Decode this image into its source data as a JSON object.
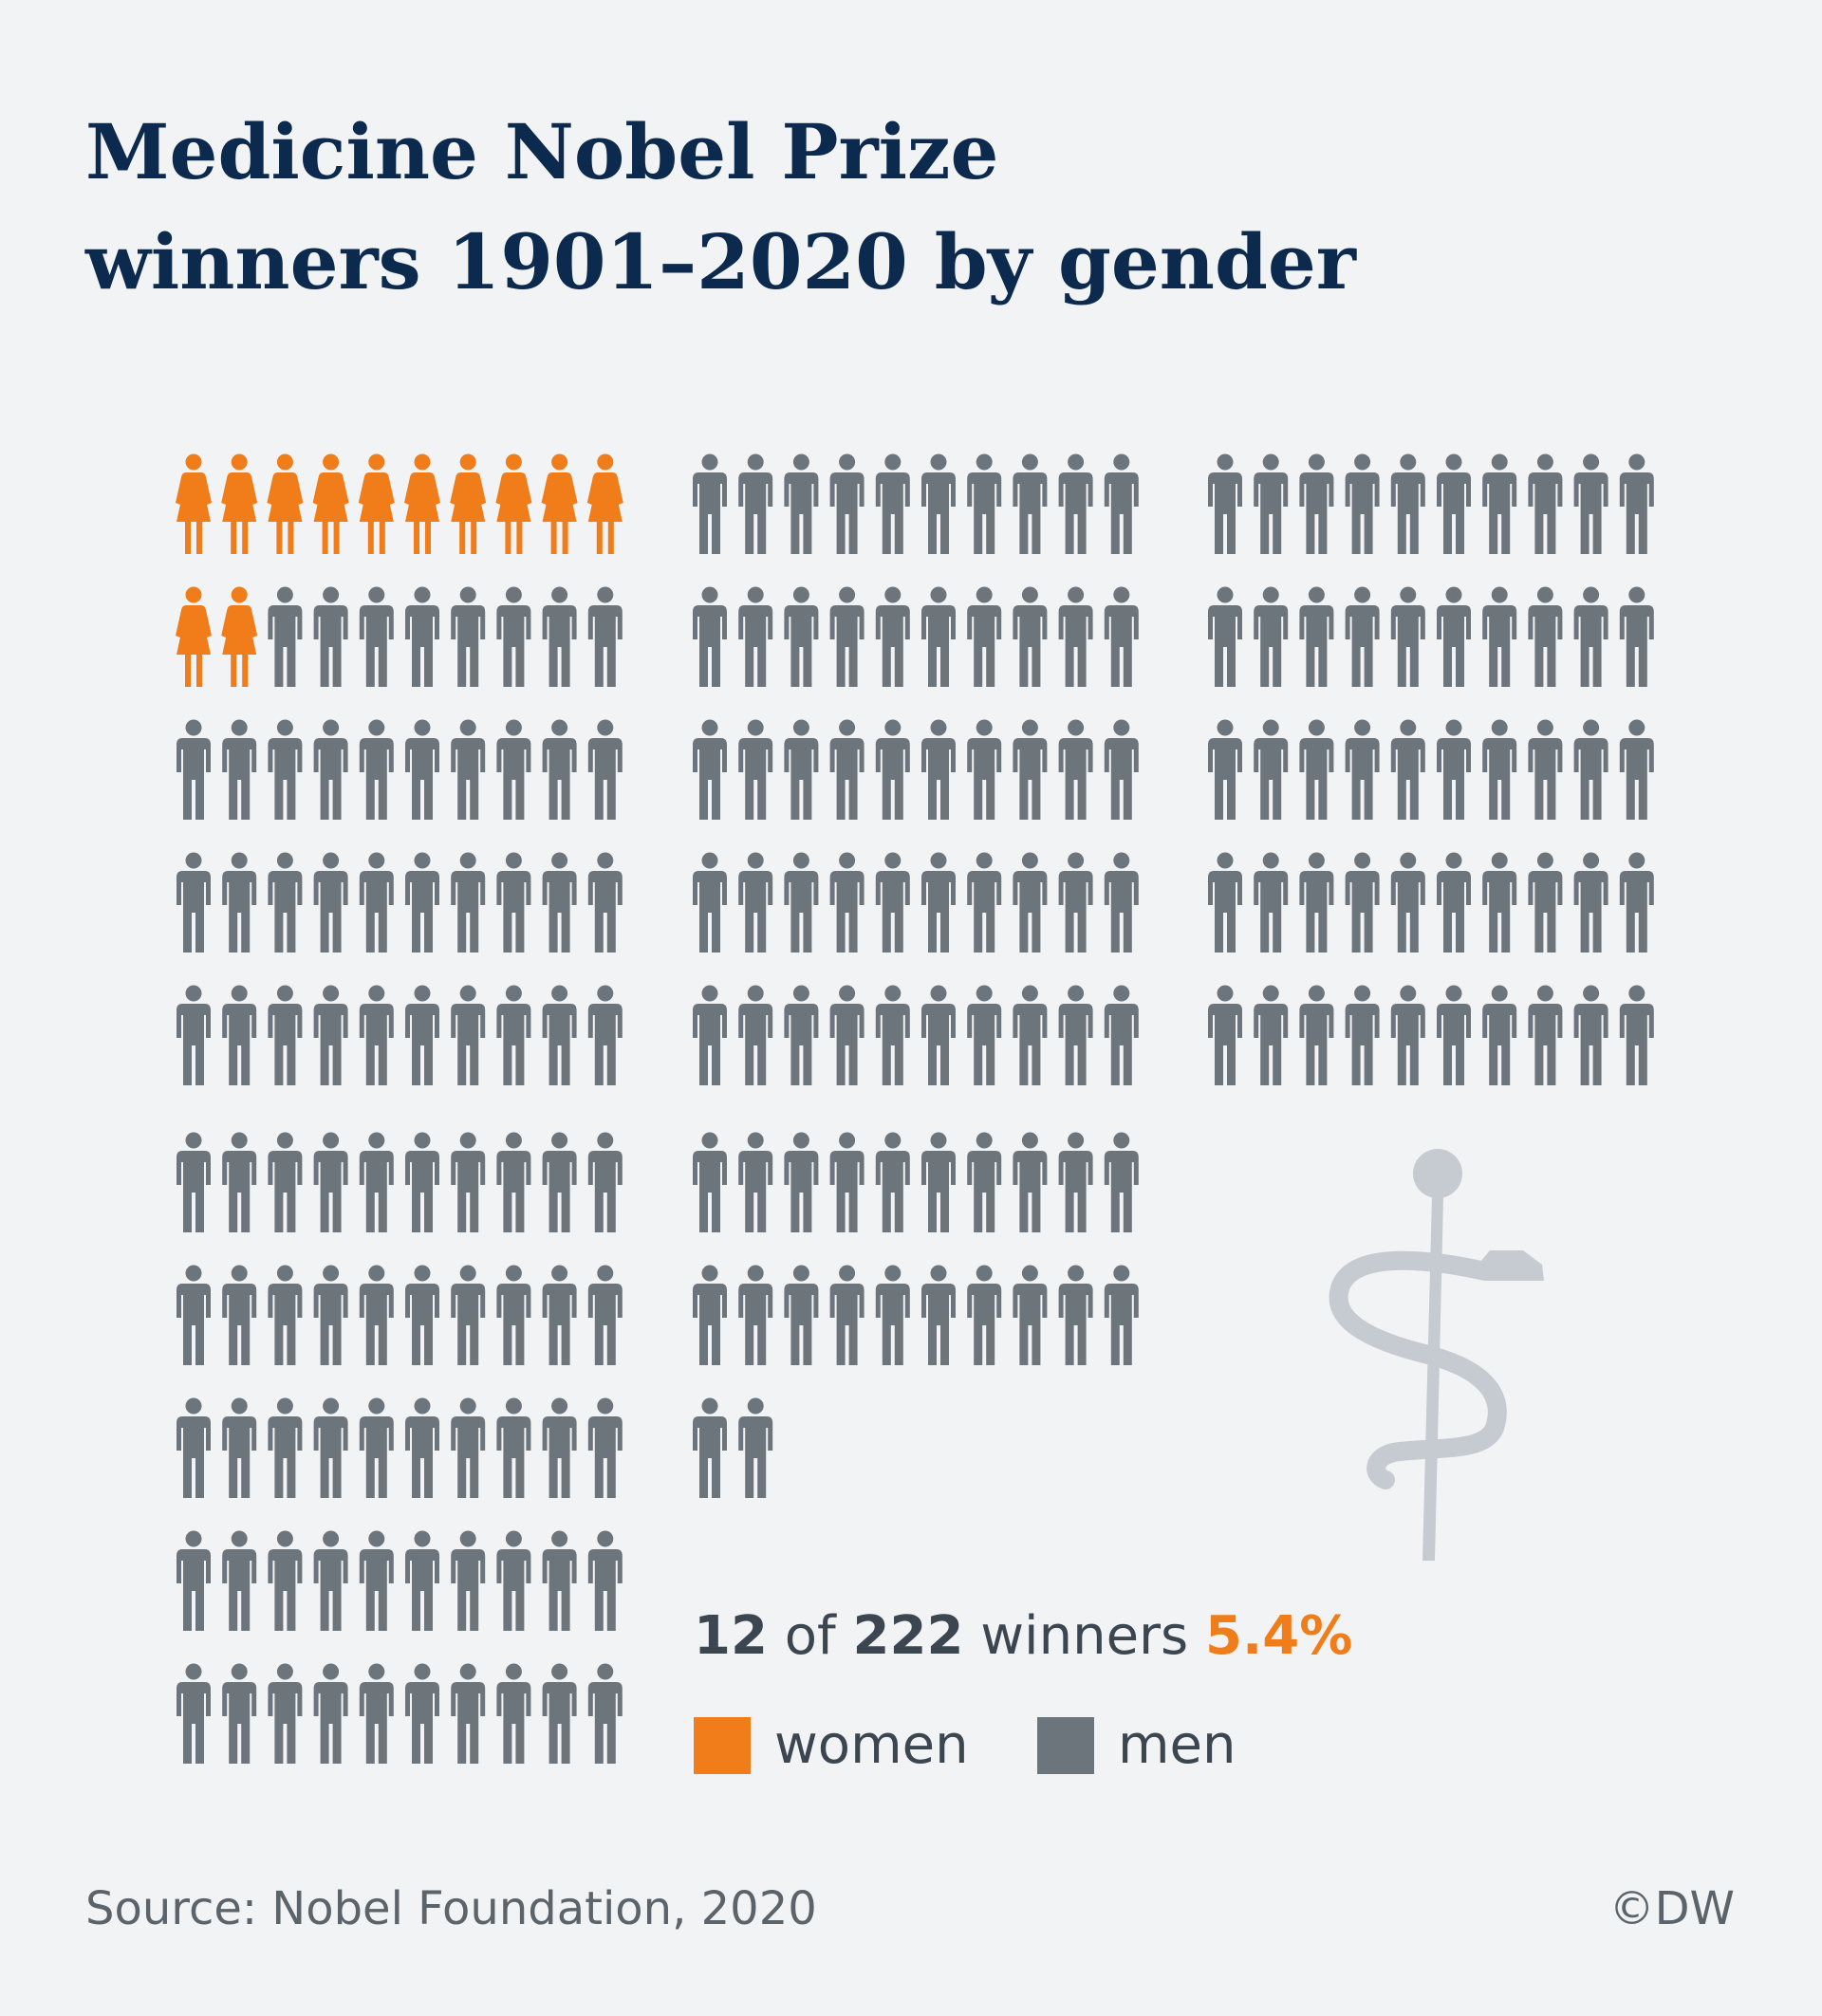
{
  "title_line1": "Medicine Nobel Prize",
  "title_line2": "winners 1901–2020 by gender",
  "chart_data": {
    "type": "pictogram",
    "title": "Medicine Nobel Prize winners 1901–2020 by gender",
    "unit": "1 icon = 1 winner",
    "categories": [
      "women",
      "men"
    ],
    "values": [
      12,
      210
    ],
    "total": 222,
    "women_share_percent": 5.4,
    "legend_position": "bottom"
  },
  "summary": {
    "count": "12",
    "of": " of ",
    "total": "222",
    "winners": " winners ",
    "percent": "5.4%"
  },
  "legend": {
    "women_label": "women",
    "men_label": "men"
  },
  "colors": {
    "women": "#f07d1a",
    "men": "#6d757c",
    "symbol": "#c5cbd0",
    "title": "#0c2a4d",
    "background": "#f2f3f5"
  },
  "icons": {
    "women": "woman-icon",
    "men": "man-icon",
    "symbol": "rod-of-asclepius-icon"
  },
  "source": "Source: Nobel Foundation, 2020",
  "credit": "©DW"
}
